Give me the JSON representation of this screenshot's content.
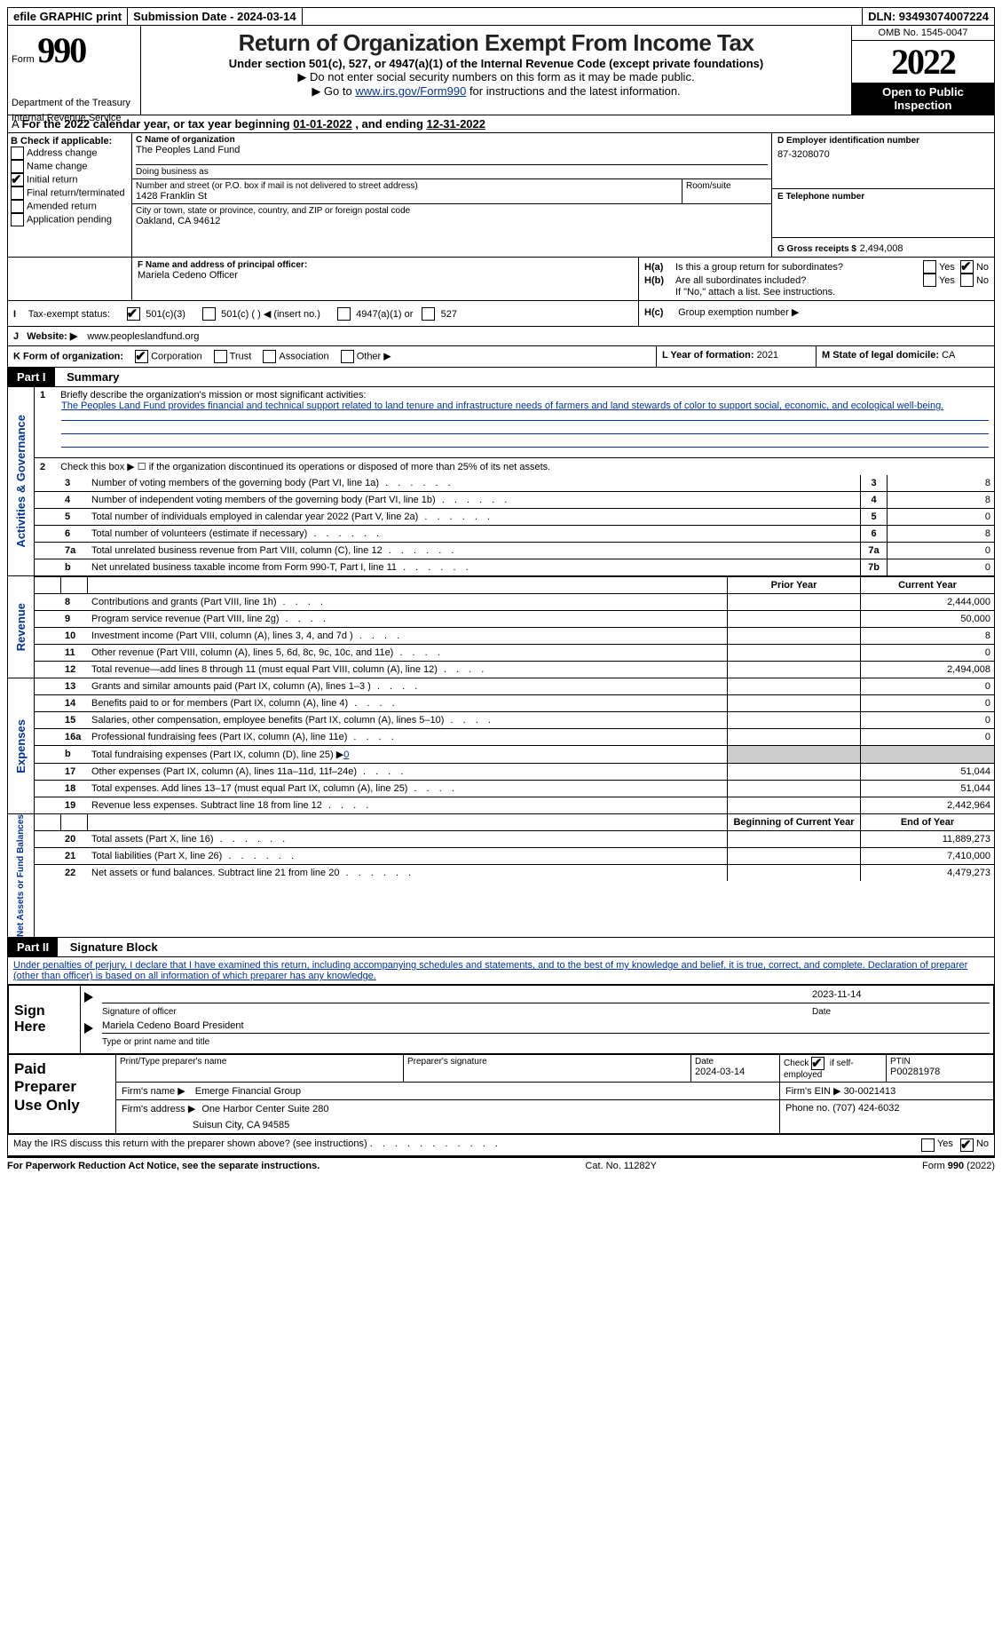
{
  "topbar": {
    "efile": "efile GRAPHIC print",
    "submission_label": "Submission Date - 2024-03-14",
    "dln": "DLN: 93493074007224"
  },
  "header": {
    "form_word": "Form",
    "form_num": "990",
    "dept": "Department of the Treasury",
    "irs": "Internal Revenue Service",
    "title": "Return of Organization Exempt From Income Tax",
    "subtitle": "Under section 501(c), 527, or 4947(a)(1) of the Internal Revenue Code (except private foundations)",
    "note1": "▶ Do not enter social security numbers on this form as it may be made public.",
    "note2_pre": "▶ Go to ",
    "note2_link": "www.irs.gov/Form990",
    "note2_post": " for instructions and the latest information.",
    "omb": "OMB No. 1545-0047",
    "year": "2022",
    "inspection1": "Open to Public",
    "inspection2": "Inspection"
  },
  "lineA": {
    "text_pre": "For the 2022 calendar year, or tax year beginning ",
    "begin": "01-01-2022",
    "mid": " , and ending ",
    "end": "12-31-2022"
  },
  "boxB": {
    "label": "B Check if applicable:",
    "opts": [
      "Address change",
      "Name change",
      "Initial return",
      "Final return/terminated",
      "Amended return",
      "Application pending"
    ],
    "checked_idx": 2
  },
  "boxC": {
    "name_label": "C Name of organization",
    "name": "The Peoples Land Fund",
    "dba_label": "Doing business as",
    "addr_label": "Number and street (or P.O. box if mail is not delivered to street address)",
    "room_label": "Room/suite",
    "addr": "1428 Franklin St",
    "city_label": "City or town, state or province, country, and ZIP or foreign postal code",
    "city": "Oakland, CA  94612"
  },
  "boxD": {
    "label": "D Employer identification number",
    "value": "87-3208070"
  },
  "boxE": {
    "label": "E Telephone number"
  },
  "boxG": {
    "label": "G Gross receipts $",
    "value": "2,494,008"
  },
  "boxF": {
    "label": "F Name and address of principal officer:",
    "name": "Mariela Cedeno Officer"
  },
  "boxH": {
    "a_label": "Is this a group return for subordinates?",
    "b_label": "Are all subordinates included?",
    "note": "If \"No,\" attach a list. See instructions.",
    "c_label": "Group exemption number ▶"
  },
  "lineI": {
    "label": "Tax-exempt status:",
    "o1": "501(c)(3)",
    "o2": "501(c) (   ) ◀ (insert no.)",
    "o3": "4947(a)(1) or",
    "o4": "527"
  },
  "lineJ": {
    "label": "Website: ▶",
    "value": "www.peopleslandfund.org"
  },
  "lineK": {
    "label": "K Form of organization:",
    "opts": [
      "Corporation",
      "Trust",
      "Association",
      "Other ▶"
    ]
  },
  "lineL": {
    "label": "L Year of formation:",
    "value": "2021"
  },
  "lineM": {
    "label": "M State of legal domicile:",
    "value": "CA"
  },
  "part1": {
    "part": "Part I",
    "title": "Summary",
    "line1_label": "Briefly describe the organization's mission or most significant activities:",
    "line1_text": "The Peoples Land Fund provides financial and technical support related to land tenure and infrastructure needs of farmers and land stewards of color to support social, economic, and ecological well-being.",
    "line2": "Check this box ▶ ☐ if the organization discontinued its operations or disposed of more than 25% of its net assets.",
    "rows_gov": [
      {
        "n": "3",
        "label": "Number of voting members of the governing body (Part VI, line 1a)",
        "box": "3",
        "val": "8"
      },
      {
        "n": "4",
        "label": "Number of independent voting members of the governing body (Part VI, line 1b)",
        "box": "4",
        "val": "8"
      },
      {
        "n": "5",
        "label": "Total number of individuals employed in calendar year 2022 (Part V, line 2a)",
        "box": "5",
        "val": "0"
      },
      {
        "n": "6",
        "label": "Total number of volunteers (estimate if necessary)",
        "box": "6",
        "val": "8"
      },
      {
        "n": "7a",
        "label": "Total unrelated business revenue from Part VIII, column (C), line 12",
        "box": "7a",
        "val": "0"
      },
      {
        "n": "b",
        "label": "Net unrelated business taxable income from Form 990-T, Part I, line 11",
        "box": "7b",
        "val": "0"
      }
    ],
    "header_rev": {
      "prior": "Prior Year",
      "current": "Current Year"
    },
    "rows_rev": [
      {
        "n": "8",
        "label": "Contributions and grants (Part VIII, line 1h)",
        "cur": "2,444,000"
      },
      {
        "n": "9",
        "label": "Program service revenue (Part VIII, line 2g)",
        "cur": "50,000"
      },
      {
        "n": "10",
        "label": "Investment income (Part VIII, column (A), lines 3, 4, and 7d )",
        "cur": "8"
      },
      {
        "n": "11",
        "label": "Other revenue (Part VIII, column (A), lines 5, 6d, 8c, 9c, 10c, and 11e)",
        "cur": "0"
      },
      {
        "n": "12",
        "label": "Total revenue—add lines 8 through 11 (must equal Part VIII, column (A), line 12)",
        "cur": "2,494,008"
      }
    ],
    "rows_exp": [
      {
        "n": "13",
        "label": "Grants and similar amounts paid (Part IX, column (A), lines 1–3 )",
        "cur": "0"
      },
      {
        "n": "14",
        "label": "Benefits paid to or for members (Part IX, column (A), line 4)",
        "cur": "0"
      },
      {
        "n": "15",
        "label": "Salaries, other compensation, employee benefits (Part IX, column (A), lines 5–10)",
        "cur": "0"
      },
      {
        "n": "16a",
        "label": "Professional fundraising fees (Part IX, column (A), line 11e)",
        "cur": "0"
      },
      {
        "n": "b",
        "label": "Total fundraising expenses (Part IX, column (D), line 25) ▶",
        "inset": "0",
        "shaded": true
      },
      {
        "n": "17",
        "label": "Other expenses (Part IX, column (A), lines 11a–11d, 11f–24e)",
        "cur": "51,044"
      },
      {
        "n": "18",
        "label": "Total expenses. Add lines 13–17 (must equal Part IX, column (A), line 25)",
        "cur": "51,044"
      },
      {
        "n": "19",
        "label": "Revenue less expenses. Subtract line 18 from line 12",
        "cur": "2,442,964"
      }
    ],
    "header_na": {
      "begin": "Beginning of Current Year",
      "end": "End of Year"
    },
    "rows_na": [
      {
        "n": "20",
        "label": "Total assets (Part X, line 16)",
        "cur": "11,889,273"
      },
      {
        "n": "21",
        "label": "Total liabilities (Part X, line 26)",
        "cur": "7,410,000"
      },
      {
        "n": "22",
        "label": "Net assets or fund balances. Subtract line 21 from line 20",
        "cur": "4,479,273"
      }
    ],
    "side_labels": {
      "gov": "Activities & Governance",
      "rev": "Revenue",
      "exp": "Expenses",
      "na": "Net Assets or Fund Balances"
    }
  },
  "part2": {
    "part": "Part II",
    "title": "Signature Block",
    "declaration": "Under penalties of perjury, I declare that I have examined this return, including accompanying schedules and statements, and to the best of my knowledge and belief, it is true, correct, and complete. Declaration of preparer (other than officer) is based on all information of which preparer has any knowledge."
  },
  "sign": {
    "here": "Sign Here",
    "sig_label": "Signature of officer",
    "date": "2023-11-14",
    "date_label": "Date",
    "name": "Mariela Cedeno Board President",
    "name_label": "Type or print name and title"
  },
  "preparer": {
    "label": "Paid Preparer Use Only",
    "print_label": "Print/Type preparer's name",
    "sig_label": "Preparer's signature",
    "date_label": "Date",
    "date": "2024-03-14",
    "check_label": "Check ☑ if self-employed",
    "ptin_label": "PTIN",
    "ptin": "P00281978",
    "firm_name_label": "Firm's name   ▶",
    "firm_name": "Emerge Financial Group",
    "firm_ein_label": "Firm's EIN ▶",
    "firm_ein": "30-0021413",
    "firm_addr_label": "Firm's address ▶",
    "firm_addr1": "One Harbor Center Suite 280",
    "firm_addr2": "Suisun City, CA  94585",
    "phone_label": "Phone no.",
    "phone": "(707) 424-6032"
  },
  "discuss": {
    "text": "May the IRS discuss this return with the preparer shown above? (see instructions)"
  },
  "footer": {
    "left": "For Paperwork Reduction Act Notice, see the separate instructions.",
    "mid": "Cat. No. 11282Y",
    "right": "Form 990 (2022)"
  }
}
